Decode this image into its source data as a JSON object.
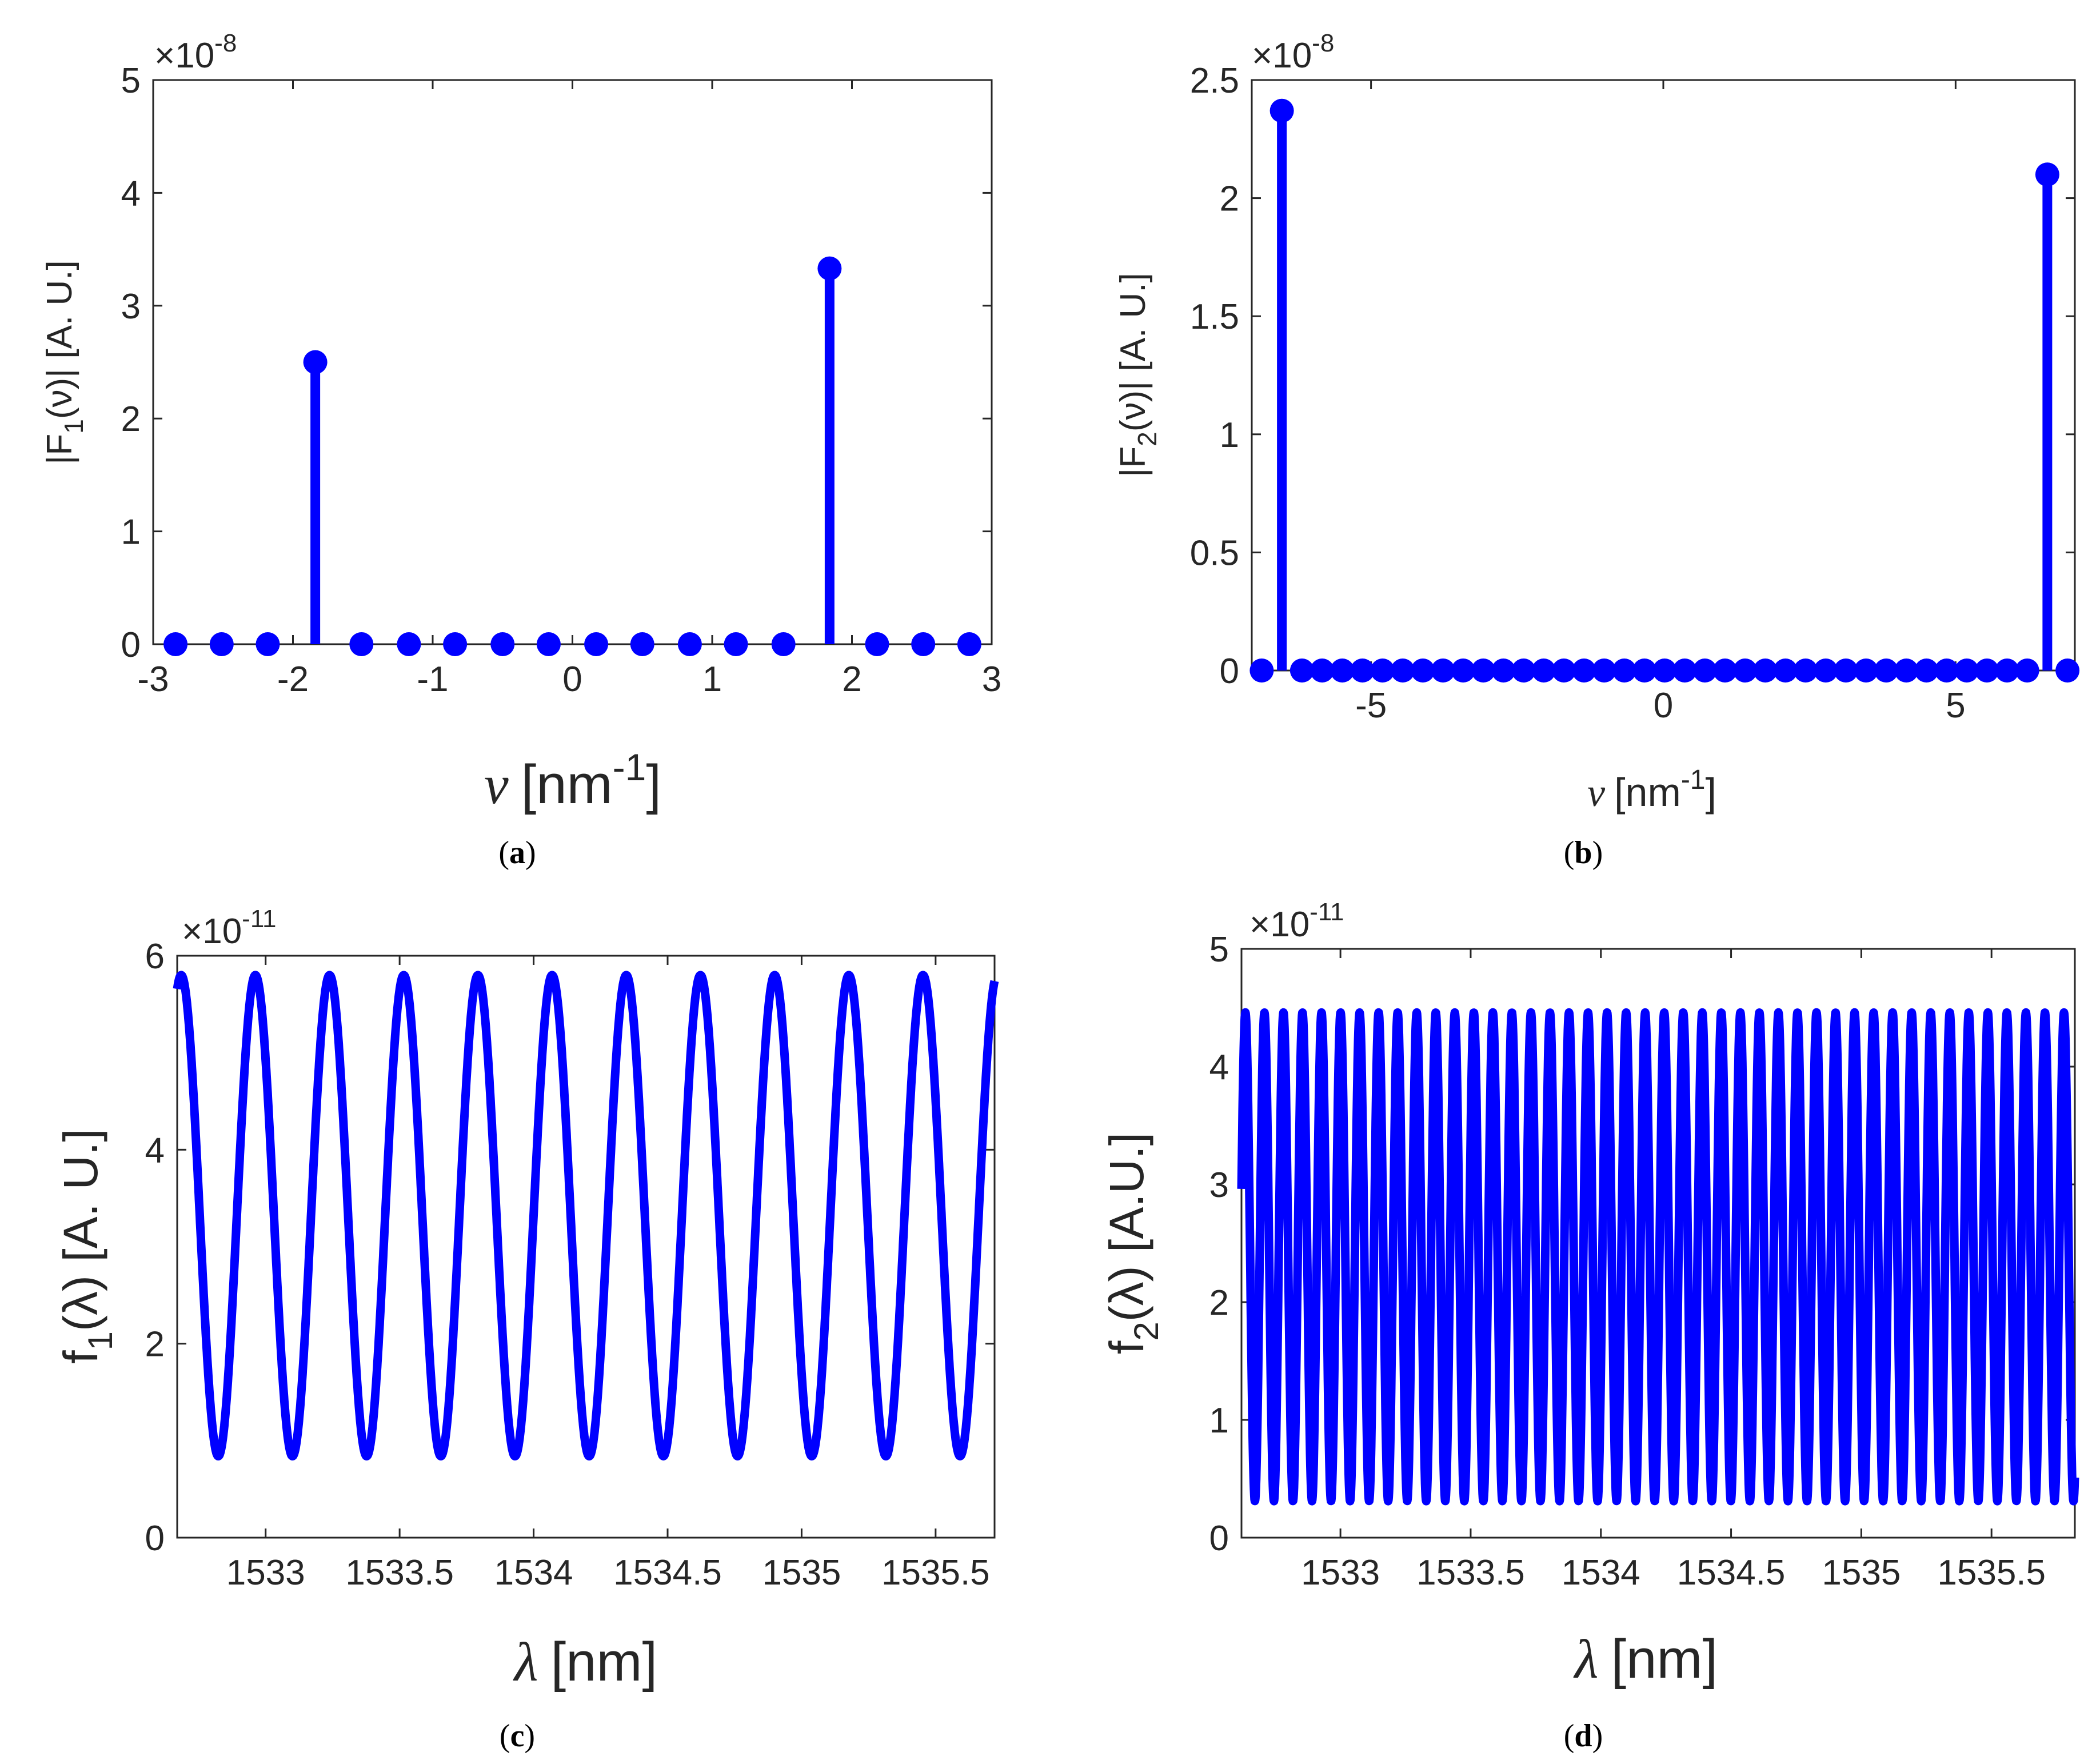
{
  "colors": {
    "series": "#0000ff",
    "axis": "#262626",
    "background": "#ffffff"
  },
  "chart_data": [
    {
      "id": "a",
      "type": "stem",
      "caption_letter": "a",
      "xlabel_sym": "ν",
      "xlabel_unit_pre": "[nm",
      "xlabel_unit_exp": "-1",
      "xlabel_unit_post": "]",
      "ylabel_pre": "|F",
      "ylabel_sub": "1",
      "ylabel_post": "(ν)| [A. U.]",
      "multiplier": "×10",
      "multiplier_exp": "-8",
      "xlim": [
        -3,
        3
      ],
      "ylim": [
        0,
        5
      ],
      "xticks": [
        -3,
        -2,
        -1,
        0,
        1,
        2,
        3
      ],
      "xtick_labels": [
        "-3",
        "-2",
        "-1",
        "0",
        "1",
        "2",
        "3"
      ],
      "yticks": [
        0,
        1,
        2,
        3,
        4,
        5
      ],
      "ytick_labels": [
        "0",
        "1",
        "2",
        "3",
        "4",
        "5"
      ],
      "x": [
        -2.84,
        -2.51,
        -2.18,
        -1.84,
        -1.51,
        -1.17,
        -0.84,
        -0.5,
        -0.17,
        0.17,
        0.5,
        0.84,
        1.17,
        1.51,
        1.84,
        2.18,
        2.51,
        2.84
      ],
      "y": [
        0,
        0,
        0,
        2.5,
        0,
        0,
        0,
        0,
        0,
        0,
        0,
        0,
        0,
        0,
        3.33,
        0,
        0,
        0
      ]
    },
    {
      "id": "b",
      "type": "stem",
      "caption_letter": "b",
      "xlabel_sym": "ν",
      "xlabel_unit_pre": "[nm",
      "xlabel_unit_exp": "-1",
      "xlabel_unit_post": "]",
      "ylabel_pre": "|F",
      "ylabel_sub": "2",
      "ylabel_post": "(ν)| [A. U.]",
      "multiplier": "×10",
      "multiplier_exp": "-8",
      "xlim": [
        -7.04,
        7.04
      ],
      "ylim": [
        0,
        2.5
      ],
      "xticks": [
        -5,
        0,
        5
      ],
      "xtick_labels": [
        "-5",
        "0",
        "5"
      ],
      "yticks": [
        0,
        0.5,
        1,
        1.5,
        2,
        2.5
      ],
      "ytick_labels": [
        "0",
        "0.5",
        "1",
        "1.5",
        "2",
        "2.5"
      ],
      "x_start": -6.87,
      "x_step": 0.3446,
      "n_points": 41,
      "peaks": [
        {
          "index": 1,
          "value": 2.37
        },
        {
          "index": 39,
          "value": 2.1
        }
      ]
    },
    {
      "id": "c",
      "type": "line",
      "caption_letter": "c",
      "xlabel_sym": "λ",
      "xlabel_unit": "[nm]",
      "ylabel_pre": "f",
      "ylabel_sub": "1",
      "ylabel_post": "(λ)  [A. U.]",
      "multiplier": "×10",
      "multiplier_exp": "-11",
      "xlim": [
        1532.67,
        1535.72
      ],
      "ylim": [
        0,
        6
      ],
      "xticks": [
        1533,
        1533.5,
        1534,
        1534.5,
        1535,
        1535.5
      ],
      "xtick_labels": [
        "1533",
        "1533.5",
        "1534",
        "1534.5",
        "1535",
        "1535.5"
      ],
      "yticks": [
        0,
        2,
        4,
        6
      ],
      "ytick_labels": [
        "0",
        "2",
        "4",
        "6"
      ],
      "mean": 3.32,
      "amplitude": 2.48,
      "period": 0.2768,
      "first_peak": 1532.685
    },
    {
      "id": "d",
      "type": "line",
      "caption_letter": "d",
      "xlabel_sym": "λ",
      "xlabel_unit": "[nm]",
      "ylabel_pre": "f",
      "ylabel_sub": "2",
      "ylabel_post": "(λ)  [A.U.]",
      "multiplier": "×10",
      "multiplier_exp": "-11",
      "xlim": [
        1532.62,
        1535.82
      ],
      "ylim": [
        0,
        5
      ],
      "xticks": [
        1533,
        1533.5,
        1534,
        1534.5,
        1535,
        1535.5
      ],
      "xtick_labels": [
        "1533",
        "1533.5",
        "1534",
        "1534.5",
        "1535",
        "1535.5"
      ],
      "yticks": [
        0,
        1,
        2,
        3,
        4,
        5
      ],
      "ytick_labels": [
        "0",
        "1",
        "2",
        "3",
        "4",
        "5"
      ],
      "mean": 2.385,
      "amplitude": 2.075,
      "period": 0.0731,
      "first_peak": 1532.635
    }
  ]
}
